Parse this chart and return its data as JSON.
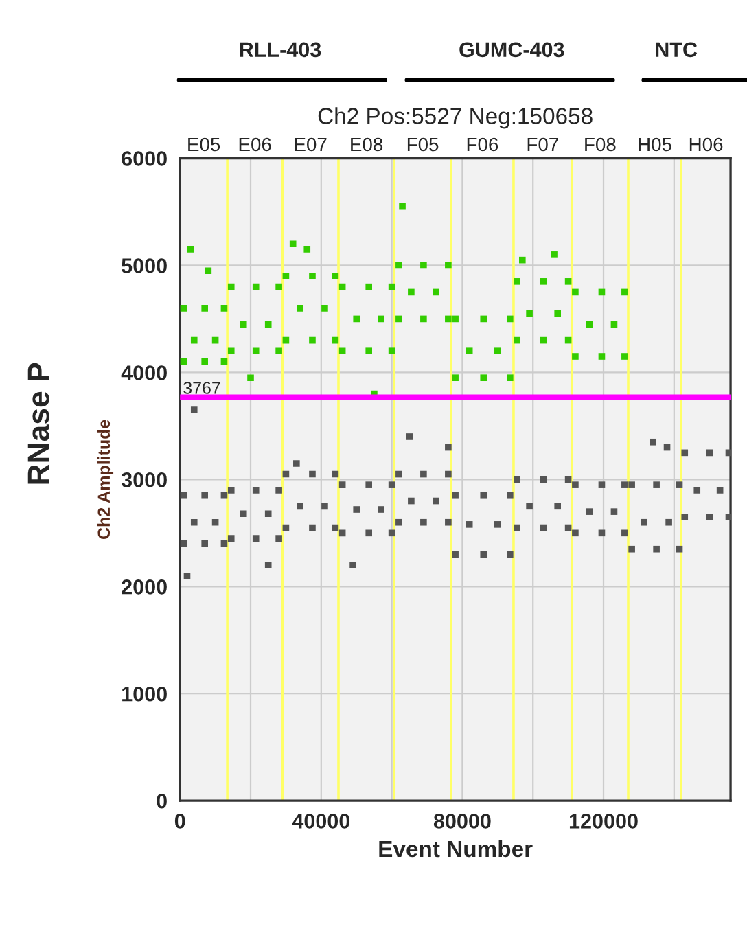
{
  "chart_data": {
    "type": "scatter",
    "title": "Ch2 Pos:5527 Neg:150658",
    "xlabel": "Event Number",
    "ylabel": "Ch2 Amplitude",
    "annotations": [
      "RNase P",
      "RLL-403",
      "GUMC-403",
      "NTC",
      "E05",
      "E06",
      "E07",
      "E08",
      "F05",
      "F06",
      "F07",
      "F08",
      "H05",
      "H06"
    ],
    "xlim": [
      0,
      156000
    ],
    "ylim": [
      0,
      6000
    ],
    "xticks": [
      0,
      {
        "value": 20000,
        "label": null
      },
      40000,
      {
        "value": 60000,
        "label": null
      },
      80000,
      {
        "value": 100000,
        "label": null
      },
      120000,
      {
        "value": 140000,
        "label": null
      }
    ],
    "yticks": [
      0,
      1000,
      2000,
      3000,
      4000,
      5000,
      6000
    ],
    "grid": true,
    "legend": false,
    "marker": "square",
    "ref_lines": [
      {
        "axis": "y",
        "value": 3767,
        "label": "3767",
        "color": "#ff00ff"
      },
      {
        "axis": "x",
        "value": 13400,
        "color": "#ffff66"
      },
      {
        "axis": "x",
        "value": 29000,
        "color": "#ffff66"
      },
      {
        "axis": "x",
        "value": 44900,
        "color": "#ffff66"
      },
      {
        "axis": "x",
        "value": 60700,
        "color": "#ffff66"
      },
      {
        "axis": "x",
        "value": 76800,
        "color": "#ffff66"
      },
      {
        "axis": "x",
        "value": 94500,
        "color": "#ffff66"
      },
      {
        "axis": "x",
        "value": 111000,
        "color": "#ffff66"
      },
      {
        "axis": "x",
        "value": 127000,
        "color": "#ffff66"
      },
      {
        "axis": "x",
        "value": 142000,
        "color": "#ffff66"
      }
    ],
    "series": [
      {
        "color": "#33cc00",
        "x": [
          1000,
          1000,
          4000,
          7000,
          7000,
          10000,
          12500,
          12500,
          3000,
          8000,
          14500,
          14500,
          18000,
          21500,
          21500,
          25000,
          28000,
          28000,
          20000,
          30000,
          30000,
          34000,
          37500,
          37500,
          41000,
          44000,
          44000,
          32000,
          36000,
          46000,
          46000,
          50000,
          53500,
          53500,
          57000,
          60000,
          60000,
          55000,
          62000,
          62000,
          65500,
          69000,
          69000,
          72500,
          76000,
          76000,
          63000,
          78000,
          78000,
          82000,
          86000,
          86000,
          90000,
          93500,
          93500,
          95500,
          95500,
          99000,
          103000,
          103000,
          107000,
          110000,
          110000,
          97000,
          106000,
          112000,
          112000,
          116000,
          119500,
          119500,
          123000,
          126000,
          126000
        ],
        "values": [
          4600,
          4100,
          4300,
          4600,
          4100,
          4300,
          4600,
          4100,
          5150,
          4950,
          4800,
          4200,
          4450,
          4800,
          4200,
          4450,
          4800,
          4200,
          3950,
          4900,
          4300,
          4600,
          4900,
          4300,
          4600,
          4900,
          4300,
          5200,
          5150,
          4800,
          4200,
          4500,
          4800,
          4200,
          4500,
          4800,
          4200,
          3800,
          5000,
          4500,
          4750,
          5000,
          4500,
          4750,
          5000,
          4500,
          5550,
          4500,
          3950,
          4200,
          4500,
          3950,
          4200,
          4500,
          3950,
          4850,
          4300,
          4550,
          4850,
          4300,
          4550,
          4850,
          4300,
          5050,
          5100,
          4750,
          4150,
          4450,
          4750,
          4150,
          4450,
          4750,
          4150
        ]
      },
      {
        "color": "#555555",
        "x": [
          1000,
          1000,
          4000,
          7000,
          7000,
          10000,
          12500,
          12500,
          4000,
          2000,
          14500,
          14500,
          18000,
          21500,
          21500,
          25000,
          28000,
          28000,
          25000,
          30000,
          30000,
          34000,
          37500,
          37500,
          41000,
          44000,
          44000,
          33000,
          46000,
          46000,
          50000,
          53500,
          53500,
          57000,
          60000,
          60000,
          49000,
          62000,
          62000,
          65500,
          69000,
          69000,
          72500,
          76000,
          76000,
          65000,
          76000,
          78000,
          78000,
          82000,
          86000,
          86000,
          90000,
          93500,
          93500,
          95500,
          95500,
          99000,
          103000,
          103000,
          107000,
          110000,
          110000,
          112000,
          112000,
          116000,
          119500,
          119500,
          123000,
          126000,
          126000,
          128000,
          128000,
          131500,
          135000,
          135000,
          138500,
          141500,
          141500,
          134000,
          138000,
          143000,
          143000,
          146500,
          150000,
          150000,
          153000,
          155500,
          155500
        ],
        "values": [
          2850,
          2400,
          2600,
          2850,
          2400,
          2600,
          2850,
          2400,
          3650,
          2100,
          2900,
          2450,
          2680,
          2900,
          2450,
          2680,
          2900,
          2450,
          2200,
          3050,
          2550,
          2750,
          3050,
          2550,
          2750,
          3050,
          2550,
          3150,
          2950,
          2500,
          2720,
          2950,
          2500,
          2720,
          2950,
          2500,
          2200,
          3050,
          2600,
          2800,
          3050,
          2600,
          2800,
          3050,
          2600,
          3400,
          3300,
          2850,
          2300,
          2580,
          2850,
          2300,
          2580,
          2850,
          2300,
          3000,
          2550,
          2750,
          3000,
          2550,
          2750,
          3000,
          2550,
          2950,
          2500,
          2700,
          2950,
          2500,
          2700,
          2950,
          2500,
          2950,
          2350,
          2600,
          2950,
          2350,
          2600,
          2950,
          2350,
          3350,
          3300,
          3250,
          2650,
          2900,
          3250,
          2650,
          2900,
          3250,
          2650
        ]
      }
    ]
  }
}
